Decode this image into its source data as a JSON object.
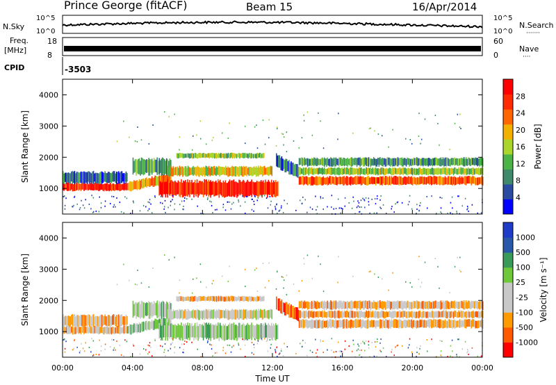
{
  "header": {
    "station": "Prince George (fitACF)",
    "beam": "Beam 15",
    "date": "16/Apr/2014"
  },
  "left_labels": {
    "nsky": "N.Sky",
    "freq_line1": "Freq.",
    "freq_line2": "[MHz]",
    "cpid": "CPID"
  },
  "right_labels": {
    "nsearch": "N.Search",
    "nave": "Nave",
    "nsearch_dots": "·······",
    "nave_dots": "····"
  },
  "cpid_value": "-3503",
  "colors": {
    "power": [
      "#0000ff",
      "#2b4ba0",
      "#3f8a6a",
      "#4cb447",
      "#aad52b",
      "#f2b000",
      "#ff6600",
      "#ff2a00",
      "#ff0000"
    ],
    "velocity": [
      "#ff0000",
      "#ff5a00",
      "#ff9a00",
      "#c8c8c8",
      "#c8c8c8",
      "#6fc83a",
      "#3a9a5a",
      "#2a58a8",
      "#1e3cc8"
    ],
    "grey": "#c8c8c8"
  },
  "chart_data": [
    {
      "type": "line",
      "name_left": "N.Sky",
      "name_right": "N.Search",
      "yticks_left": [
        "10^5",
        "10^0"
      ],
      "yticks_right": [
        "10^5",
        "10^0"
      ]
    },
    {
      "type": "line",
      "name_left": "Freq. [MHz]",
      "name_right": "Nave",
      "yticks_left": [
        "18",
        "8"
      ],
      "yticks_right": [
        "60",
        "0"
      ]
    },
    {
      "type": "heatmap",
      "quantity": "Power",
      "ylabel": "Slant Range [km]",
      "ylim": [
        180,
        4500
      ],
      "yticks": [
        1000,
        2000,
        3000,
        4000
      ],
      "xlim": [
        0,
        24
      ],
      "colorbar_label": "Power [dB]",
      "colorbar_ticks": [
        "4",
        "8",
        "12",
        "16",
        "20",
        "24",
        "28"
      ]
    },
    {
      "type": "heatmap",
      "quantity": "Velocity",
      "ylabel": "Slant Range [km]",
      "xlabel": "Time UT",
      "ylim": [
        180,
        4500
      ],
      "yticks": [
        1000,
        2000,
        3000,
        4000
      ],
      "xlim": [
        0,
        24
      ],
      "xticks": [
        "00:00",
        "04:00",
        "08:00",
        "12:00",
        "16:00",
        "20:00",
        "00:00"
      ],
      "colorbar_label": "Velocity [m s⁻¹]",
      "colorbar_ticks": [
        "1000",
        "500",
        "100",
        "25",
        "-25",
        "-100",
        "-500",
        "-1000"
      ]
    }
  ]
}
